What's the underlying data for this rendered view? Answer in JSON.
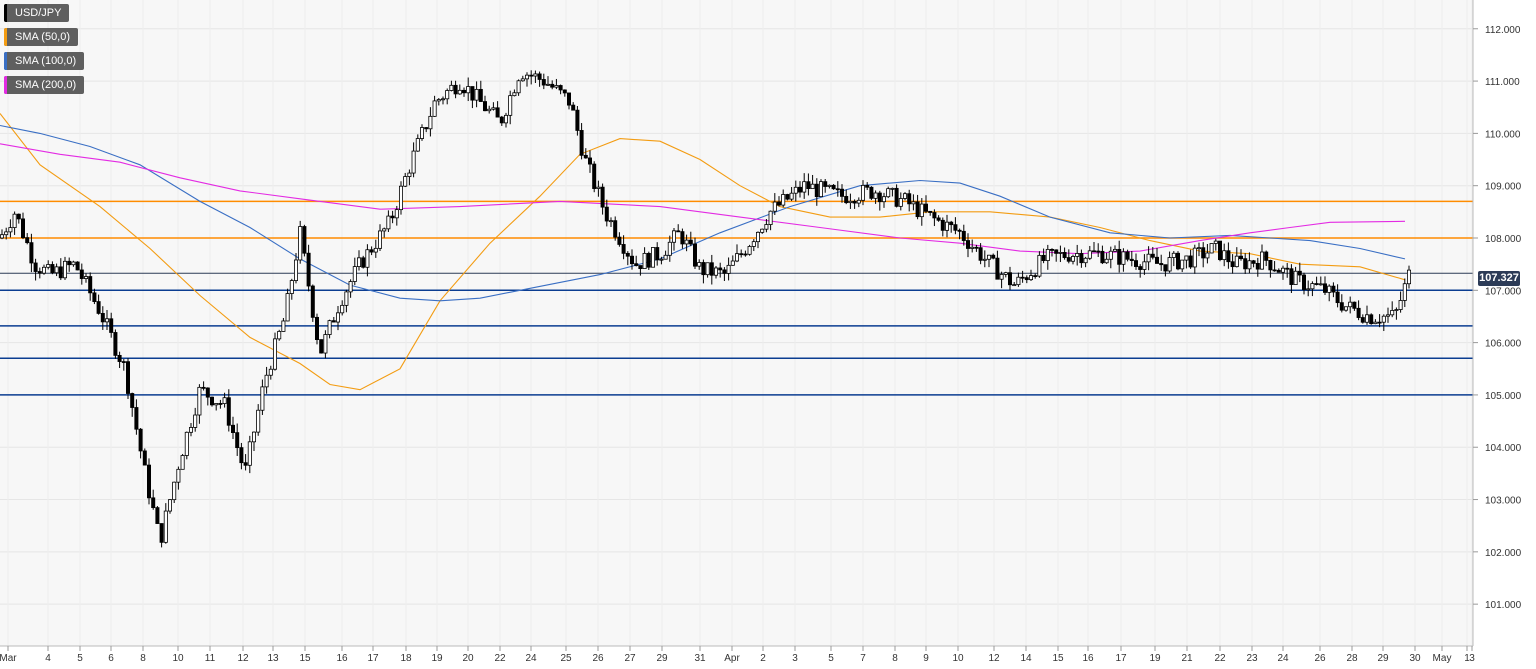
{
  "legend": [
    {
      "label": "USD/JPY",
      "color": "#000000"
    },
    {
      "label": "SMA (50,0)",
      "color": "#f39c12"
    },
    {
      "label": "SMA (100,0)",
      "color": "#3a6fc4"
    },
    {
      "label": "SMA (200,0)",
      "color": "#e32be3"
    }
  ],
  "current_price_label": "107.327",
  "chart_data": {
    "type": "candlestick",
    "symbol": "USD/JPY",
    "ylim": [
      100.2,
      112.55
    ],
    "y_ticks": [
      "101.000",
      "102.000",
      "103.000",
      "104.000",
      "105.000",
      "106.000",
      "107.000",
      "108.000",
      "109.000",
      "110.000",
      "111.000",
      "112.000"
    ],
    "x_ticks": [
      "Mar",
      "4",
      "5",
      "6",
      "8",
      "10",
      "11",
      "12",
      "13",
      "15",
      "16",
      "17",
      "18",
      "19",
      "20",
      "22",
      "24",
      "25",
      "26",
      "27",
      "29",
      "31",
      "Apr",
      "2",
      "3",
      "5",
      "7",
      "8",
      "9",
      "10",
      "12",
      "14",
      "15",
      "16",
      "17",
      "19",
      "21",
      "22",
      "23",
      "24",
      "26",
      "28",
      "29",
      "30",
      "May",
      "1",
      "3"
    ],
    "current_price": 107.327,
    "horizontal_levels": [
      {
        "value": 108.7,
        "color": "#ff8c00"
      },
      {
        "value": 108.0,
        "color": "#ff8c00"
      },
      {
        "value": 107.0,
        "color": "#0b3d91"
      },
      {
        "value": 106.32,
        "color": "#0b3d91"
      },
      {
        "value": 105.7,
        "color": "#0b3d91"
      },
      {
        "value": 105.0,
        "color": "#0b3d91"
      }
    ],
    "close_path": [
      [
        0,
        108.0
      ],
      [
        15,
        108.5
      ],
      [
        35,
        107.5
      ],
      [
        50,
        107.3
      ],
      [
        75,
        107.5
      ],
      [
        100,
        106.6
      ],
      [
        125,
        105.5
      ],
      [
        145,
        103.5
      ],
      [
        160,
        102.2
      ],
      [
        180,
        103.8
      ],
      [
        200,
        105.1
      ],
      [
        225,
        104.8
      ],
      [
        245,
        103.5
      ],
      [
        265,
        105.3
      ],
      [
        285,
        106.5
      ],
      [
        300,
        108.1
      ],
      [
        320,
        105.8
      ],
      [
        340,
        106.8
      ],
      [
        360,
        107.5
      ],
      [
        390,
        108.3
      ],
      [
        410,
        109.4
      ],
      [
        435,
        110.6
      ],
      [
        460,
        111.0
      ],
      [
        480,
        110.6
      ],
      [
        500,
        110.2
      ],
      [
        520,
        111.2
      ],
      [
        545,
        111.0
      ],
      [
        570,
        110.6
      ],
      [
        585,
        109.5
      ],
      [
        605,
        108.5
      ],
      [
        620,
        108.0
      ],
      [
        635,
        107.5
      ],
      [
        660,
        107.7
      ],
      [
        680,
        108.1
      ],
      [
        700,
        107.4
      ],
      [
        725,
        107.3
      ],
      [
        745,
        107.8
      ],
      [
        770,
        108.5
      ],
      [
        805,
        109.0
      ],
      [
        840,
        108.8
      ],
      [
        875,
        108.9
      ],
      [
        905,
        108.7
      ],
      [
        930,
        108.4
      ],
      [
        960,
        108.1
      ],
      [
        990,
        107.5
      ],
      [
        1015,
        107.1
      ],
      [
        1045,
        107.6
      ],
      [
        1070,
        107.7
      ],
      [
        1100,
        107.7
      ],
      [
        1130,
        107.6
      ],
      [
        1160,
        107.5
      ],
      [
        1190,
        107.6
      ],
      [
        1215,
        107.8
      ],
      [
        1235,
        107.5
      ],
      [
        1265,
        107.6
      ],
      [
        1295,
        107.2
      ],
      [
        1325,
        107.0
      ],
      [
        1345,
        106.7
      ],
      [
        1370,
        106.5
      ],
      [
        1395,
        106.5
      ],
      [
        1410,
        107.35
      ]
    ],
    "sma_series": [
      {
        "name": "SMA (50,0)",
        "color": "#f39c12",
        "points": [
          [
            0,
            110.38
          ],
          [
            40,
            109.4
          ],
          [
            100,
            108.6
          ],
          [
            150,
            107.8
          ],
          [
            200,
            106.9
          ],
          [
            250,
            106.1
          ],
          [
            300,
            105.6
          ],
          [
            330,
            105.2
          ],
          [
            360,
            105.1
          ],
          [
            400,
            105.5
          ],
          [
            440,
            106.8
          ],
          [
            490,
            107.9
          ],
          [
            540,
            108.8
          ],
          [
            580,
            109.6
          ],
          [
            620,
            109.9
          ],
          [
            660,
            109.85
          ],
          [
            700,
            109.5
          ],
          [
            740,
            109.0
          ],
          [
            780,
            108.6
          ],
          [
            830,
            108.4
          ],
          [
            880,
            108.4
          ],
          [
            930,
            108.5
          ],
          [
            990,
            108.5
          ],
          [
            1050,
            108.4
          ],
          [
            1100,
            108.2
          ],
          [
            1150,
            107.95
          ],
          [
            1200,
            107.75
          ],
          [
            1250,
            107.7
          ],
          [
            1300,
            107.5
          ],
          [
            1360,
            107.45
          ],
          [
            1405,
            107.2
          ]
        ]
      },
      {
        "name": "SMA (100,0)",
        "color": "#3a6fc4",
        "points": [
          [
            0,
            110.15
          ],
          [
            40,
            110.0
          ],
          [
            90,
            109.75
          ],
          [
            140,
            109.4
          ],
          [
            200,
            108.7
          ],
          [
            250,
            108.2
          ],
          [
            300,
            107.6
          ],
          [
            350,
            107.1
          ],
          [
            400,
            106.85
          ],
          [
            440,
            106.8
          ],
          [
            480,
            106.85
          ],
          [
            520,
            107.0
          ],
          [
            600,
            107.3
          ],
          [
            660,
            107.6
          ],
          [
            720,
            108.1
          ],
          [
            790,
            108.6
          ],
          [
            860,
            109.0
          ],
          [
            920,
            109.1
          ],
          [
            960,
            109.05
          ],
          [
            1000,
            108.8
          ],
          [
            1050,
            108.4
          ],
          [
            1110,
            108.1
          ],
          [
            1170,
            108.0
          ],
          [
            1230,
            108.05
          ],
          [
            1270,
            108.0
          ],
          [
            1310,
            107.95
          ],
          [
            1360,
            107.8
          ],
          [
            1405,
            107.6
          ]
        ]
      },
      {
        "name": "SMA (200,0)",
        "color": "#e32be3",
        "points": [
          [
            0,
            109.8
          ],
          [
            60,
            109.6
          ],
          [
            120,
            109.45
          ],
          [
            180,
            109.15
          ],
          [
            240,
            108.9
          ],
          [
            300,
            108.75
          ],
          [
            380,
            108.55
          ],
          [
            460,
            108.6
          ],
          [
            560,
            108.7
          ],
          [
            660,
            108.6
          ],
          [
            740,
            108.4
          ],
          [
            820,
            108.2
          ],
          [
            900,
            108.0
          ],
          [
            960,
            107.9
          ],
          [
            1020,
            107.75
          ],
          [
            1080,
            107.7
          ],
          [
            1140,
            107.75
          ],
          [
            1200,
            107.95
          ],
          [
            1250,
            108.1
          ],
          [
            1290,
            108.2
          ],
          [
            1330,
            108.3
          ],
          [
            1405,
            108.32
          ]
        ]
      }
    ]
  }
}
